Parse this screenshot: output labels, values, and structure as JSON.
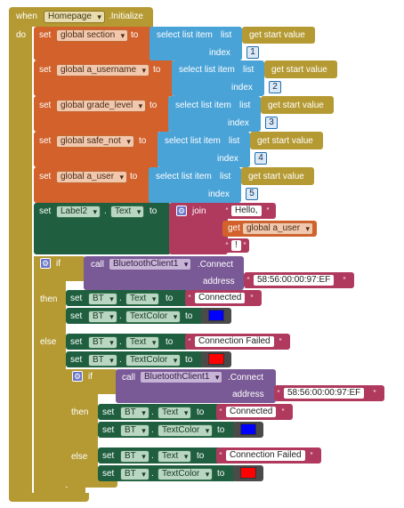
{
  "colors": {
    "event": "#b59a33",
    "variable": "#d2612b",
    "list": "#4aa3d7",
    "gold_call": "#b59a33",
    "text": "#b03a5e",
    "component": "#1f5f3f",
    "bt_call": "#7a5a96",
    "math": "#1f6fb0",
    "blue_swatch": "#0000ff",
    "red_swatch": "#ff0000"
  },
  "event": {
    "when": "when",
    "component": "Homepage",
    "event_name": ".Initialize",
    "do": "do"
  },
  "sets": [
    {
      "set": "set",
      "var": "global section",
      "to": "to",
      "list_call": "select list item",
      "list_word": "list",
      "get_start": "get start value",
      "index_label": "index",
      "index": "1"
    },
    {
      "set": "set",
      "var": "global a_username",
      "to": "to",
      "list_call": "select list item",
      "list_word": "list",
      "get_start": "get start value",
      "index_label": "index",
      "index": "2"
    },
    {
      "set": "set",
      "var": "global grade_level",
      "to": "to",
      "list_call": "select list item",
      "list_word": "list",
      "get_start": "get start value",
      "index_label": "index",
      "index": "3"
    },
    {
      "set": "set",
      "var": "global safe_not",
      "to": "to",
      "list_call": "select list item",
      "list_word": "list",
      "get_start": "get start value",
      "index_label": "index",
      "index": "4"
    },
    {
      "set": "set",
      "var": "global a_user",
      "to": "to",
      "list_call": "select list item",
      "list_word": "list",
      "get_start": "get start value",
      "index_label": "index",
      "index": "5"
    }
  ],
  "label_set": {
    "set": "set",
    "component": "Label2",
    "dot": ".",
    "prop": "Text",
    "to": "to",
    "join": "join",
    "str1": "Hello,",
    "get": "get",
    "var": "global a_user",
    "str2": "!"
  },
  "outer_if": {
    "if": "if",
    "call": "call",
    "component": "BluetoothClient1",
    "method": ".Connect",
    "address_label": "address",
    "address": "58:56:00:00:97:EF",
    "then": "then",
    "else": "else",
    "then_blocks": [
      {
        "set": "set",
        "comp": "BT",
        "dot": ".",
        "prop": "Text",
        "to": "to",
        "value": "Connected"
      },
      {
        "set": "set",
        "comp": "BT",
        "dot": ".",
        "prop": "TextColor",
        "to": "to",
        "color": "blue"
      }
    ],
    "else_blocks": [
      {
        "set": "set",
        "comp": "BT",
        "dot": ".",
        "prop": "Text",
        "to": "to",
        "value": "Connection Failed"
      },
      {
        "set": "set",
        "comp": "BT",
        "dot": ".",
        "prop": "TextColor",
        "to": "to",
        "color": "red"
      }
    ]
  },
  "inner_if": {
    "if": "if",
    "call": "call",
    "component": "BluetoothClient1",
    "method": ".Connect",
    "address_label": "address",
    "address": "58:56:00:00:97:EF",
    "then": "then",
    "else": "else",
    "then_blocks": [
      {
        "set": "set",
        "comp": "BT",
        "dot": ".",
        "prop": "Text",
        "to": "to",
        "value": "Connected"
      },
      {
        "set": "set",
        "comp": "BT",
        "dot": ".",
        "prop": "TextColor",
        "to": "to",
        "color": "blue"
      }
    ],
    "else_blocks": [
      {
        "set": "set",
        "comp": "BT",
        "dot": ".",
        "prop": "Text",
        "to": "to",
        "value": "Connection Failed"
      },
      {
        "set": "set",
        "comp": "BT",
        "dot": ".",
        "prop": "TextColor",
        "to": "to",
        "color": "red"
      }
    ]
  }
}
